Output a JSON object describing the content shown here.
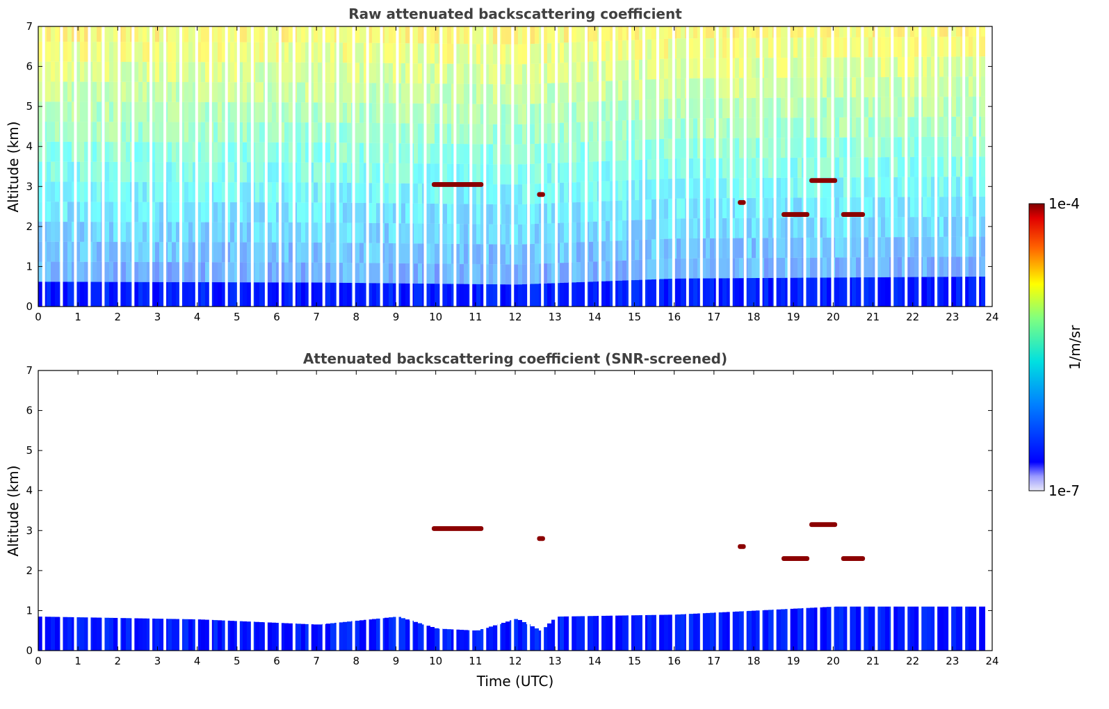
{
  "chart_data": [
    {
      "type": "heatmap",
      "title": "Raw attenuated backscattering coefficient",
      "xlabel": "",
      "ylabel": "Altitude (km)",
      "xlim": [
        0,
        24
      ],
      "ylim": [
        0,
        7
      ],
      "xticks": [
        "0",
        "1",
        "2",
        "3",
        "4",
        "5",
        "6",
        "7",
        "8",
        "9",
        "10",
        "11",
        "12",
        "13",
        "14",
        "15",
        "16",
        "17",
        "18",
        "19",
        "20",
        "21",
        "22",
        "23",
        "24"
      ],
      "yticks": [
        "0",
        "1",
        "2",
        "3",
        "4",
        "5",
        "6",
        "7"
      ],
      "noise_fill_to_top": true,
      "boundary_layer_top_km": [
        [
          0,
          0.62
        ],
        [
          7,
          0.6
        ],
        [
          12,
          0.55
        ],
        [
          16,
          0.7
        ],
        [
          24,
          0.75
        ]
      ],
      "cloud_layers": [
        {
          "t_start": 9.9,
          "t_end": 11.2,
          "alt_km": 3.05
        },
        {
          "t_start": 12.55,
          "t_end": 12.75,
          "alt_km": 2.8
        },
        {
          "t_start": 17.6,
          "t_end": 17.8,
          "alt_km": 2.6
        },
        {
          "t_start": 18.7,
          "t_end": 19.4,
          "alt_km": 2.3
        },
        {
          "t_start": 19.4,
          "t_end": 20.1,
          "alt_km": 3.15
        },
        {
          "t_start": 20.2,
          "t_end": 20.8,
          "alt_km": 2.3
        }
      ],
      "missing_data_gaps_utc": [
        0.1,
        0.55,
        0.9,
        1.25,
        1.6,
        2.0,
        2.35,
        2.8,
        3.15,
        3.55,
        3.95,
        4.3,
        4.7,
        5.0,
        5.35,
        5.7,
        6.05,
        6.4,
        6.8,
        7.15,
        7.5,
        7.9,
        8.25,
        8.6,
        9.0,
        9.35,
        9.7,
        10.1,
        10.45,
        10.85,
        11.2,
        11.55,
        11.9,
        12.3,
        12.65,
        13.0,
        13.35,
        13.75,
        14.1,
        14.45,
        14.85,
        15.2,
        15.55,
        15.95,
        16.3,
        16.65,
        17.05,
        17.4,
        17.75,
        18.15,
        18.5,
        18.85,
        19.25,
        19.6,
        19.95,
        20.35,
        20.7,
        21.05,
        21.45,
        21.8,
        22.15,
        22.55,
        22.9,
        23.25,
        23.6
      ]
    },
    {
      "type": "heatmap",
      "title": "Attenuated backscattering coefficient (SNR-screened)",
      "xlabel": "Time (UTC)",
      "ylabel": "Altitude (km)",
      "xlim": [
        0,
        24
      ],
      "ylim": [
        0,
        7
      ],
      "xticks": [
        "0",
        "1",
        "2",
        "3",
        "4",
        "5",
        "6",
        "7",
        "8",
        "9",
        "10",
        "11",
        "12",
        "13",
        "14",
        "15",
        "16",
        "17",
        "18",
        "19",
        "20",
        "21",
        "22",
        "23",
        "24"
      ],
      "yticks": [
        "0",
        "1",
        "2",
        "3",
        "4",
        "5",
        "6",
        "7"
      ],
      "noise_fill_to_top": false,
      "boundary_layer_top_km": [
        [
          0,
          0.85
        ],
        [
          4,
          0.78
        ],
        [
          7,
          0.65
        ],
        [
          8,
          0.75
        ],
        [
          9,
          0.85
        ],
        [
          10,
          0.55
        ],
        [
          11,
          0.5
        ],
        [
          12,
          0.8
        ],
        [
          12.6,
          0.5
        ],
        [
          13,
          0.85
        ],
        [
          16,
          0.9
        ],
        [
          18,
          1.0
        ],
        [
          20,
          1.1
        ],
        [
          24,
          1.1
        ]
      ],
      "cloud_layers": [
        {
          "t_start": 9.9,
          "t_end": 11.2,
          "alt_km": 3.05
        },
        {
          "t_start": 12.55,
          "t_end": 12.75,
          "alt_km": 2.8
        },
        {
          "t_start": 17.6,
          "t_end": 17.8,
          "alt_km": 2.6
        },
        {
          "t_start": 18.7,
          "t_end": 19.4,
          "alt_km": 2.3
        },
        {
          "t_start": 19.4,
          "t_end": 20.1,
          "alt_km": 3.15
        },
        {
          "t_start": 20.2,
          "t_end": 20.8,
          "alt_km": 2.3
        }
      ],
      "missing_data_gaps_utc": [
        0.1,
        0.55,
        0.9,
        1.25,
        1.6,
        2.0,
        2.35,
        2.8,
        3.15,
        3.55,
        3.95,
        4.3,
        4.7,
        5.0,
        5.35,
        5.7,
        6.05,
        6.4,
        6.8,
        7.15,
        7.5,
        7.9,
        8.25,
        8.6,
        9.0,
        9.35,
        9.7,
        10.1,
        10.45,
        10.85,
        11.2,
        11.55,
        11.9,
        12.3,
        12.65,
        13.0,
        13.35,
        13.75,
        14.1,
        14.45,
        14.85,
        15.2,
        15.55,
        15.95,
        16.3,
        16.65,
        17.05,
        17.4,
        17.75,
        18.15,
        18.5,
        18.85,
        19.25,
        19.6,
        19.95,
        20.35,
        20.7,
        21.05,
        21.45,
        21.8,
        22.15,
        22.55,
        22.9,
        23.25,
        23.6
      ]
    }
  ],
  "colorbar": {
    "label": "1/m/sr",
    "max_label": "1e-4",
    "min_label": "1e-7",
    "colormap": "jet",
    "scale": "log",
    "range": [
      1e-07,
      0.0001
    ]
  },
  "colors": {
    "cloud": "#8b0000",
    "boundary_layer": "#1a3cff",
    "background": "#ffffff"
  }
}
